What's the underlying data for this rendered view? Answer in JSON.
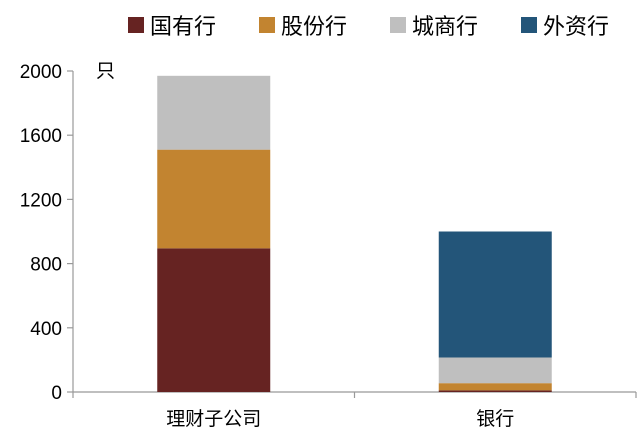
{
  "chart_data": {
    "type": "bar",
    "stacked": true,
    "title": "",
    "xlabel": "",
    "ylabel": "只",
    "ylim": [
      0,
      2000
    ],
    "yticks": [
      0,
      400,
      800,
      1200,
      1600,
      2000
    ],
    "grid": false,
    "legend_position": "top",
    "categories": [
      "理财子公司",
      "银行"
    ],
    "series": [
      {
        "name": "国有行",
        "color": "#662322",
        "values": [
          895,
          10
        ]
      },
      {
        "name": "股份行",
        "color": "#C28430",
        "values": [
          615,
          45
        ]
      },
      {
        "name": "城商行",
        "color": "#BFBFBF",
        "values": [
          460,
          160
        ]
      },
      {
        "name": "外资行",
        "color": "#235579",
        "values": [
          0,
          785
        ]
      }
    ]
  }
}
